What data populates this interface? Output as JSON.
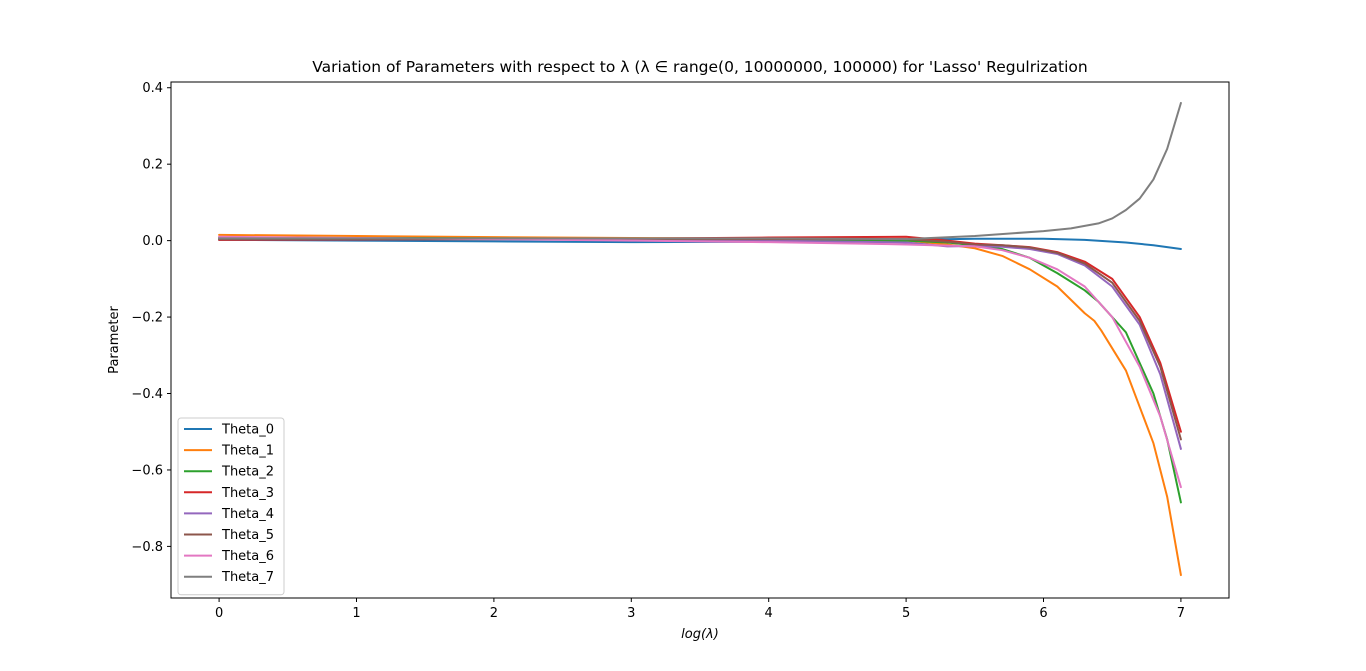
{
  "chart_data": {
    "type": "line",
    "title": "Variation of Parameters with respect to λ (λ ∈ range(0, 10000000, 100000) for 'Lasso' Regulrization",
    "xlabel": "log(λ)",
    "ylabel": "Parameter",
    "xlim": [
      -0.35,
      7.35
    ],
    "ylim": [
      -0.935,
      0.415
    ],
    "x_ticks": [
      0,
      1,
      2,
      3,
      4,
      5,
      6,
      7
    ],
    "x_tick_labels": [
      "0",
      "1",
      "2",
      "3",
      "4",
      "5",
      "6",
      "7"
    ],
    "y_ticks": [
      0.4,
      0.2,
      0.0,
      -0.2,
      -0.4,
      -0.6,
      -0.8
    ],
    "y_tick_labels": [
      "0.4",
      "0.2",
      "0.0",
      "−0.2",
      "−0.4",
      "−0.6",
      "−0.8"
    ],
    "grid": false,
    "legend_position": "lower-left",
    "series": [
      {
        "name": "Theta_0",
        "color": "#1f77b4",
        "x": [
          0,
          1,
          2,
          3,
          4,
          5,
          5.5,
          6,
          6.3,
          6.6,
          6.8,
          7.0
        ],
        "y": [
          0.002,
          0.0,
          -0.002,
          -0.004,
          -0.003,
          0.002,
          0.005,
          0.005,
          0.002,
          -0.005,
          -0.012,
          -0.022
        ]
      },
      {
        "name": "Theta_1",
        "color": "#ff7f0e",
        "x": [
          0,
          1,
          2,
          3,
          4,
          5,
          5.3,
          5.5,
          5.7,
          5.9,
          6.1,
          6.3,
          6.37,
          6.42,
          6.6,
          6.8,
          6.9,
          7.0
        ],
        "y": [
          0.015,
          0.012,
          0.009,
          0.007,
          0.005,
          0.0,
          -0.01,
          -0.02,
          -0.04,
          -0.075,
          -0.12,
          -0.19,
          -0.21,
          -0.235,
          -0.34,
          -0.53,
          -0.67,
          -0.875
        ]
      },
      {
        "name": "Theta_2",
        "color": "#2ca02c",
        "x": [
          0,
          1,
          2,
          3,
          4,
          5,
          5.3,
          5.5,
          5.7,
          5.9,
          6.1,
          6.3,
          6.4,
          6.6,
          6.8,
          6.9,
          7.0
        ],
        "y": [
          0.008,
          0.007,
          0.006,
          0.005,
          0.003,
          0.0,
          -0.005,
          -0.012,
          -0.022,
          -0.045,
          -0.085,
          -0.13,
          -0.16,
          -0.24,
          -0.4,
          -0.52,
          -0.685
        ]
      },
      {
        "name": "Theta_3",
        "color": "#d62728",
        "x": [
          0,
          1,
          2,
          3,
          4,
          5,
          5.3,
          5.5,
          5.7,
          5.9,
          6.1,
          6.3,
          6.5,
          6.7,
          6.85,
          7.0
        ],
        "y": [
          0.002,
          0.003,
          0.004,
          0.005,
          0.008,
          0.01,
          0.0,
          -0.008,
          -0.012,
          -0.017,
          -0.03,
          -0.055,
          -0.1,
          -0.2,
          -0.32,
          -0.5
        ]
      },
      {
        "name": "Theta_4",
        "color": "#9467bd",
        "x": [
          0,
          1,
          2,
          3,
          4,
          5,
          5.3,
          5.5,
          5.7,
          5.9,
          6.1,
          6.3,
          6.5,
          6.7,
          6.85,
          7.0
        ],
        "y": [
          0.006,
          0.005,
          0.004,
          0.002,
          0.0,
          -0.005,
          -0.015,
          -0.014,
          -0.016,
          -0.022,
          -0.035,
          -0.065,
          -0.12,
          -0.22,
          -0.35,
          -0.545
        ]
      },
      {
        "name": "Theta_5",
        "color": "#8c564b",
        "x": [
          0,
          1,
          2,
          3,
          4,
          5,
          5.3,
          5.5,
          5.7,
          5.9,
          6.1,
          6.3,
          6.5,
          6.7,
          6.85,
          7.0
        ],
        "y": [
          0.004,
          0.004,
          0.004,
          0.004,
          0.004,
          0.004,
          -0.003,
          -0.01,
          -0.012,
          -0.018,
          -0.032,
          -0.06,
          -0.11,
          -0.21,
          -0.33,
          -0.52
        ]
      },
      {
        "name": "Theta_6",
        "color": "#e377c2",
        "x": [
          0,
          1,
          2,
          3,
          4,
          5,
          5.3,
          5.5,
          5.7,
          5.9,
          6.1,
          6.3,
          6.5,
          6.7,
          6.85,
          7.0
        ],
        "y": [
          0.01,
          0.007,
          0.004,
          0.0,
          -0.004,
          -0.01,
          -0.013,
          -0.015,
          -0.025,
          -0.045,
          -0.075,
          -0.12,
          -0.2,
          -0.33,
          -0.46,
          -0.645
        ]
      },
      {
        "name": "Theta_7",
        "color": "#7f7f7f",
        "x": [
          0,
          1,
          2,
          3,
          4,
          5,
          5.5,
          6,
          6.2,
          6.4,
          6.5,
          6.6,
          6.7,
          6.8,
          6.9,
          7.0
        ],
        "y": [
          0.006,
          0.006,
          0.006,
          0.006,
          0.006,
          0.004,
          0.012,
          0.025,
          0.032,
          0.045,
          0.058,
          0.08,
          0.11,
          0.16,
          0.24,
          0.36
        ]
      }
    ]
  }
}
